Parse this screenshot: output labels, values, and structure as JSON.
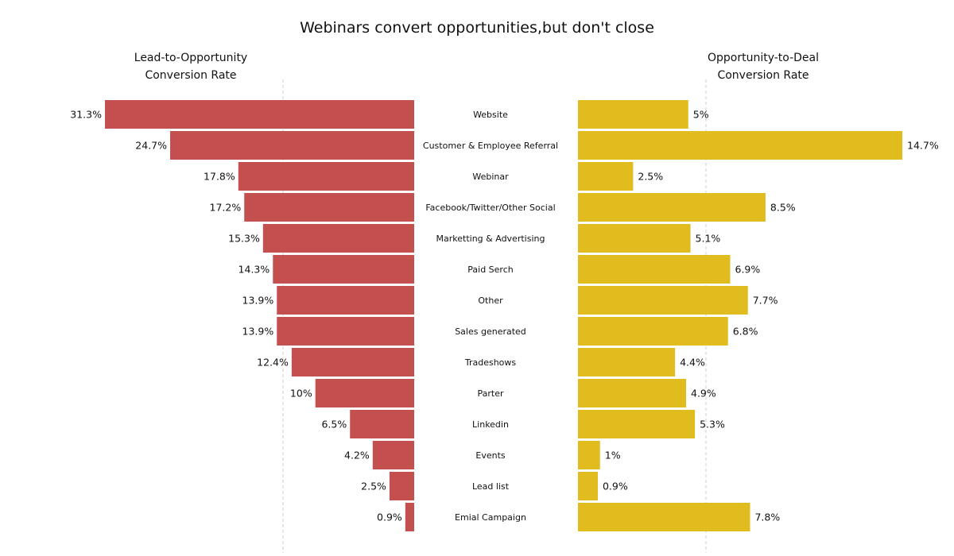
{
  "chart_data": {
    "type": "bar",
    "title": "Webinars convert opportunities,but don't close",
    "categories": [
      "Website",
      "Customer & Employee Referral",
      "Webinar",
      "Facebook/Twitter/Other Social",
      "Marketting & Advertising",
      "Paid Serch",
      "Other",
      "Sales generated",
      "Tradeshows",
      "Parter",
      "Linkedin",
      "Events",
      "Lead list",
      "Emial Campaign"
    ],
    "series": [
      {
        "title": "Lead-to-Opportunity\nConversion Rate",
        "color": "#c44f4f",
        "orientation": "leftward",
        "values": [
          31.3,
          24.7,
          17.8,
          17.2,
          15.3,
          14.3,
          13.9,
          13.9,
          12.4,
          10,
          6.5,
          4.2,
          2.5,
          0.9
        ],
        "labels": [
          "31.3%",
          "24.7%",
          "17.8%",
          "17.2%",
          "15.3%",
          "14.3%",
          "13.9%",
          "13.9%",
          "12.4%",
          "10%",
          "6.5%",
          "4.2%",
          "2.5%",
          "0.9%"
        ]
      },
      {
        "title": "Opportunity-to-Deal\nConversion Rate",
        "color": "#e0bc1f",
        "orientation": "rightward",
        "values": [
          5,
          14.7,
          2.5,
          8.5,
          5.1,
          6.9,
          7.7,
          6.8,
          4.4,
          4.9,
          5.3,
          1,
          0.9,
          7.8
        ],
        "labels": [
          "5%",
          "14.7%",
          "2.5%",
          "8.5%",
          "5.1%",
          "6.9%",
          "7.7%",
          "6.8%",
          "4.4%",
          "4.9%",
          "5.3%",
          "1%",
          "0.9%",
          "7.8%"
        ]
      }
    ],
    "xlim_left": [
      0,
      31.3
    ],
    "xlim_right": [
      0,
      14.7
    ],
    "grid": "dashed vertical line at the middle of each panel",
    "legend": "none"
  }
}
